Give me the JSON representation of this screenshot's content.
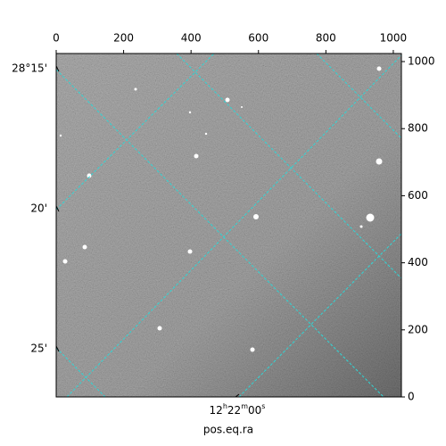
{
  "chart_data": {
    "type": "image",
    "xlabel": "pos.eq.ra",
    "xlim": [
      0,
      1024
    ],
    "xticks": [
      0,
      200,
      400,
      600,
      800,
      1000
    ],
    "ylim": [
      0,
      1024
    ],
    "yticks": [
      0,
      200,
      400,
      600,
      800,
      1000
    ],
    "dec_tick_labels": [
      "28°15'",
      "20'",
      "25'"
    ],
    "ra_tick_labels": [
      "12h22m00s"
    ],
    "grid_color": "#2fd6d6"
  }
}
